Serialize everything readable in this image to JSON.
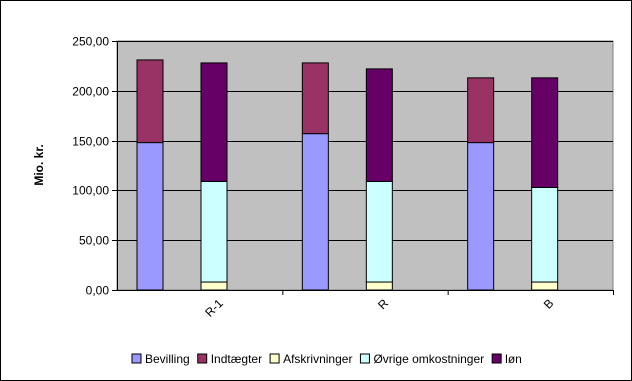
{
  "chart_data": {
    "type": "bar",
    "stacked": true,
    "title": "",
    "xlabel": "",
    "ylabel": "Mio. kr.",
    "ylim": [
      0,
      250
    ],
    "yticks": [
      "0,00",
      "50,00",
      "100,00",
      "150,00",
      "200,00",
      "250,00"
    ],
    "grid": true,
    "legend_position": "bottom",
    "categories": [
      "R-1",
      "R",
      "B"
    ],
    "stacks": [
      {
        "name": "revenue",
        "series": [
          {
            "name": "Bevilling",
            "color": "#9999ff",
            "values": [
              148,
              157,
              148
            ]
          },
          {
            "name": "Indtægter",
            "color": "#993366",
            "values": [
              83,
              71,
              65
            ]
          }
        ]
      },
      {
        "name": "costs",
        "series": [
          {
            "name": "Afskrivninger",
            "color": "#ffffcc",
            "values": [
              8,
              8,
              8
            ]
          },
          {
            "name": "Øvrige omkostninger",
            "color": "#ccffff",
            "values": [
              101,
              101,
              95
            ]
          },
          {
            "name": "løn",
            "color": "#660066",
            "values": [
              119,
              113,
              110
            ]
          }
        ]
      }
    ],
    "legend": [
      "Bevilling",
      "Indtægter",
      "Afskrivninger",
      "Øvrige omkostninger",
      "løn"
    ],
    "colors": {
      "plot_bg": "#c0c0c0",
      "grid": "#000000",
      "border": "#000000"
    }
  }
}
